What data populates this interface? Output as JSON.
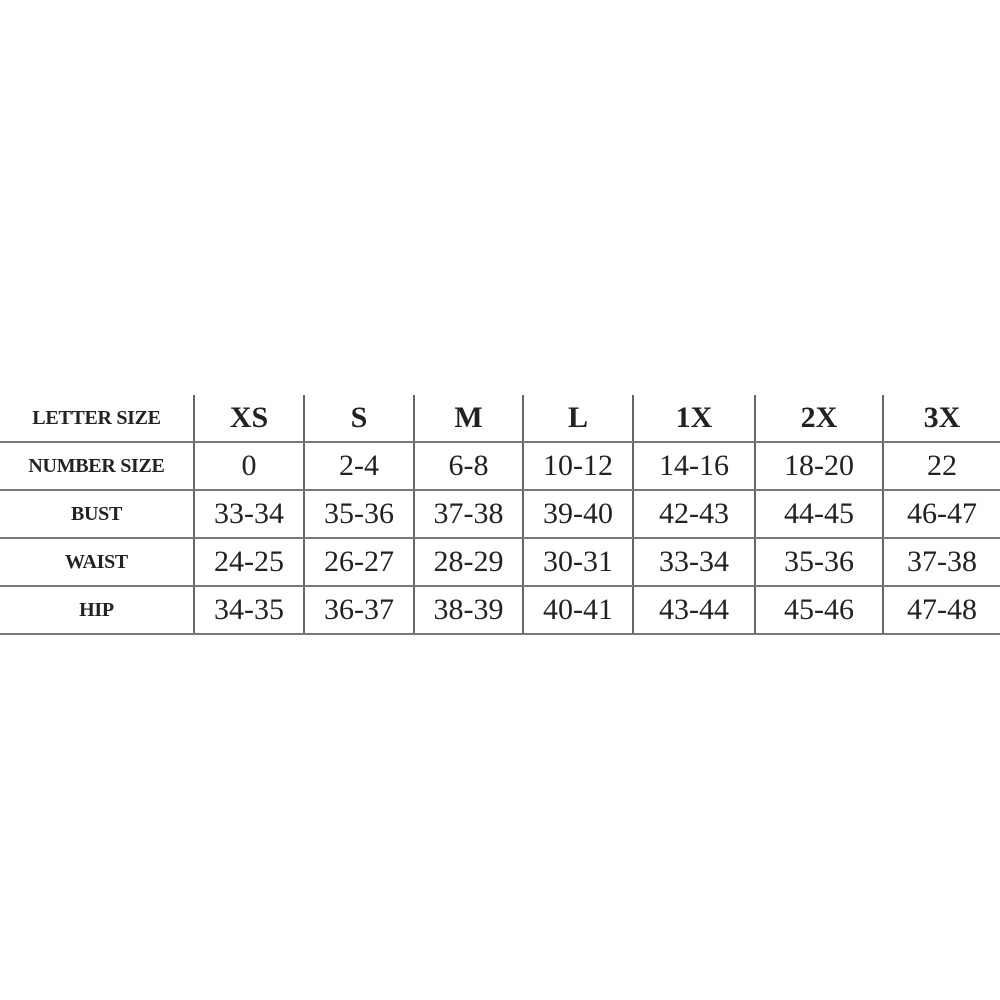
{
  "size_chart": {
    "rows": [
      {
        "label": "LETTER SIZE",
        "values": [
          "XS",
          "S",
          "M",
          "L",
          "1X",
          "2X",
          "3X"
        ]
      },
      {
        "label": "NUMBER SIZE",
        "values": [
          "0",
          "2-4",
          "6-8",
          "10-12",
          "14-16",
          "18-20",
          "22"
        ]
      },
      {
        "label": "BUST",
        "values": [
          "33-34",
          "35-36",
          "37-38",
          "39-40",
          "42-43",
          "44-45",
          "46-47"
        ]
      },
      {
        "label": "WAIST",
        "values": [
          "24-25",
          "26-27",
          "28-29",
          "30-31",
          "33-34",
          "35-36",
          "37-38"
        ]
      },
      {
        "label": "HIP",
        "values": [
          "34-35",
          "36-37",
          "38-39",
          "40-41",
          "43-44",
          "45-46",
          "47-48"
        ]
      }
    ]
  }
}
